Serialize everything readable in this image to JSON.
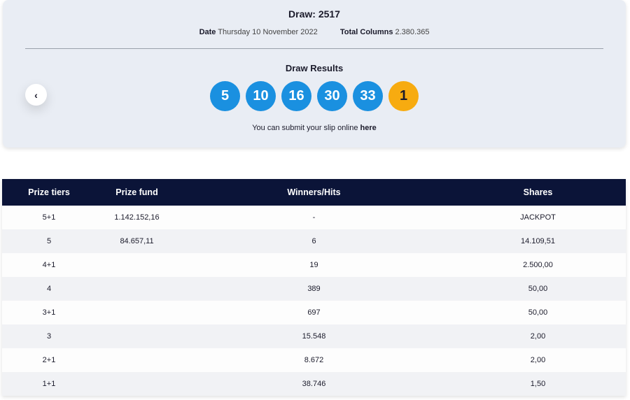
{
  "draw": {
    "title": "Draw: 2517",
    "date_label": "Date",
    "date_value": "Thursday 10 November 2022",
    "columns_label": "Total Columns",
    "columns_value": "2.380.365"
  },
  "results": {
    "label": "Draw Results",
    "numbers": [
      "5",
      "10",
      "16",
      "30",
      "33"
    ],
    "bonus": "1",
    "submit_text": "You can submit your slip online ",
    "submit_link": "here"
  },
  "colors": {
    "main_ball": "#1a90e0",
    "bonus_ball": "#f7ab10",
    "table_header": "#0b1438"
  },
  "table": {
    "headers": [
      "Prize tiers",
      "Prize fund",
      "Winners/Hits",
      "Shares"
    ],
    "rows": [
      [
        "5+1",
        "1.142.152,16",
        "-",
        "JACKPOT"
      ],
      [
        "5",
        "84.657,11",
        "6",
        "14.109,51"
      ],
      [
        "4+1",
        "",
        "19",
        "2.500,00"
      ],
      [
        "4",
        "",
        "389",
        "50,00"
      ],
      [
        "3+1",
        "",
        "697",
        "50,00"
      ],
      [
        "3",
        "",
        "15.548",
        "2,00"
      ],
      [
        "2+1",
        "",
        "8.672",
        "2,00"
      ],
      [
        "1+1",
        "",
        "38.746",
        "1,50"
      ]
    ]
  }
}
